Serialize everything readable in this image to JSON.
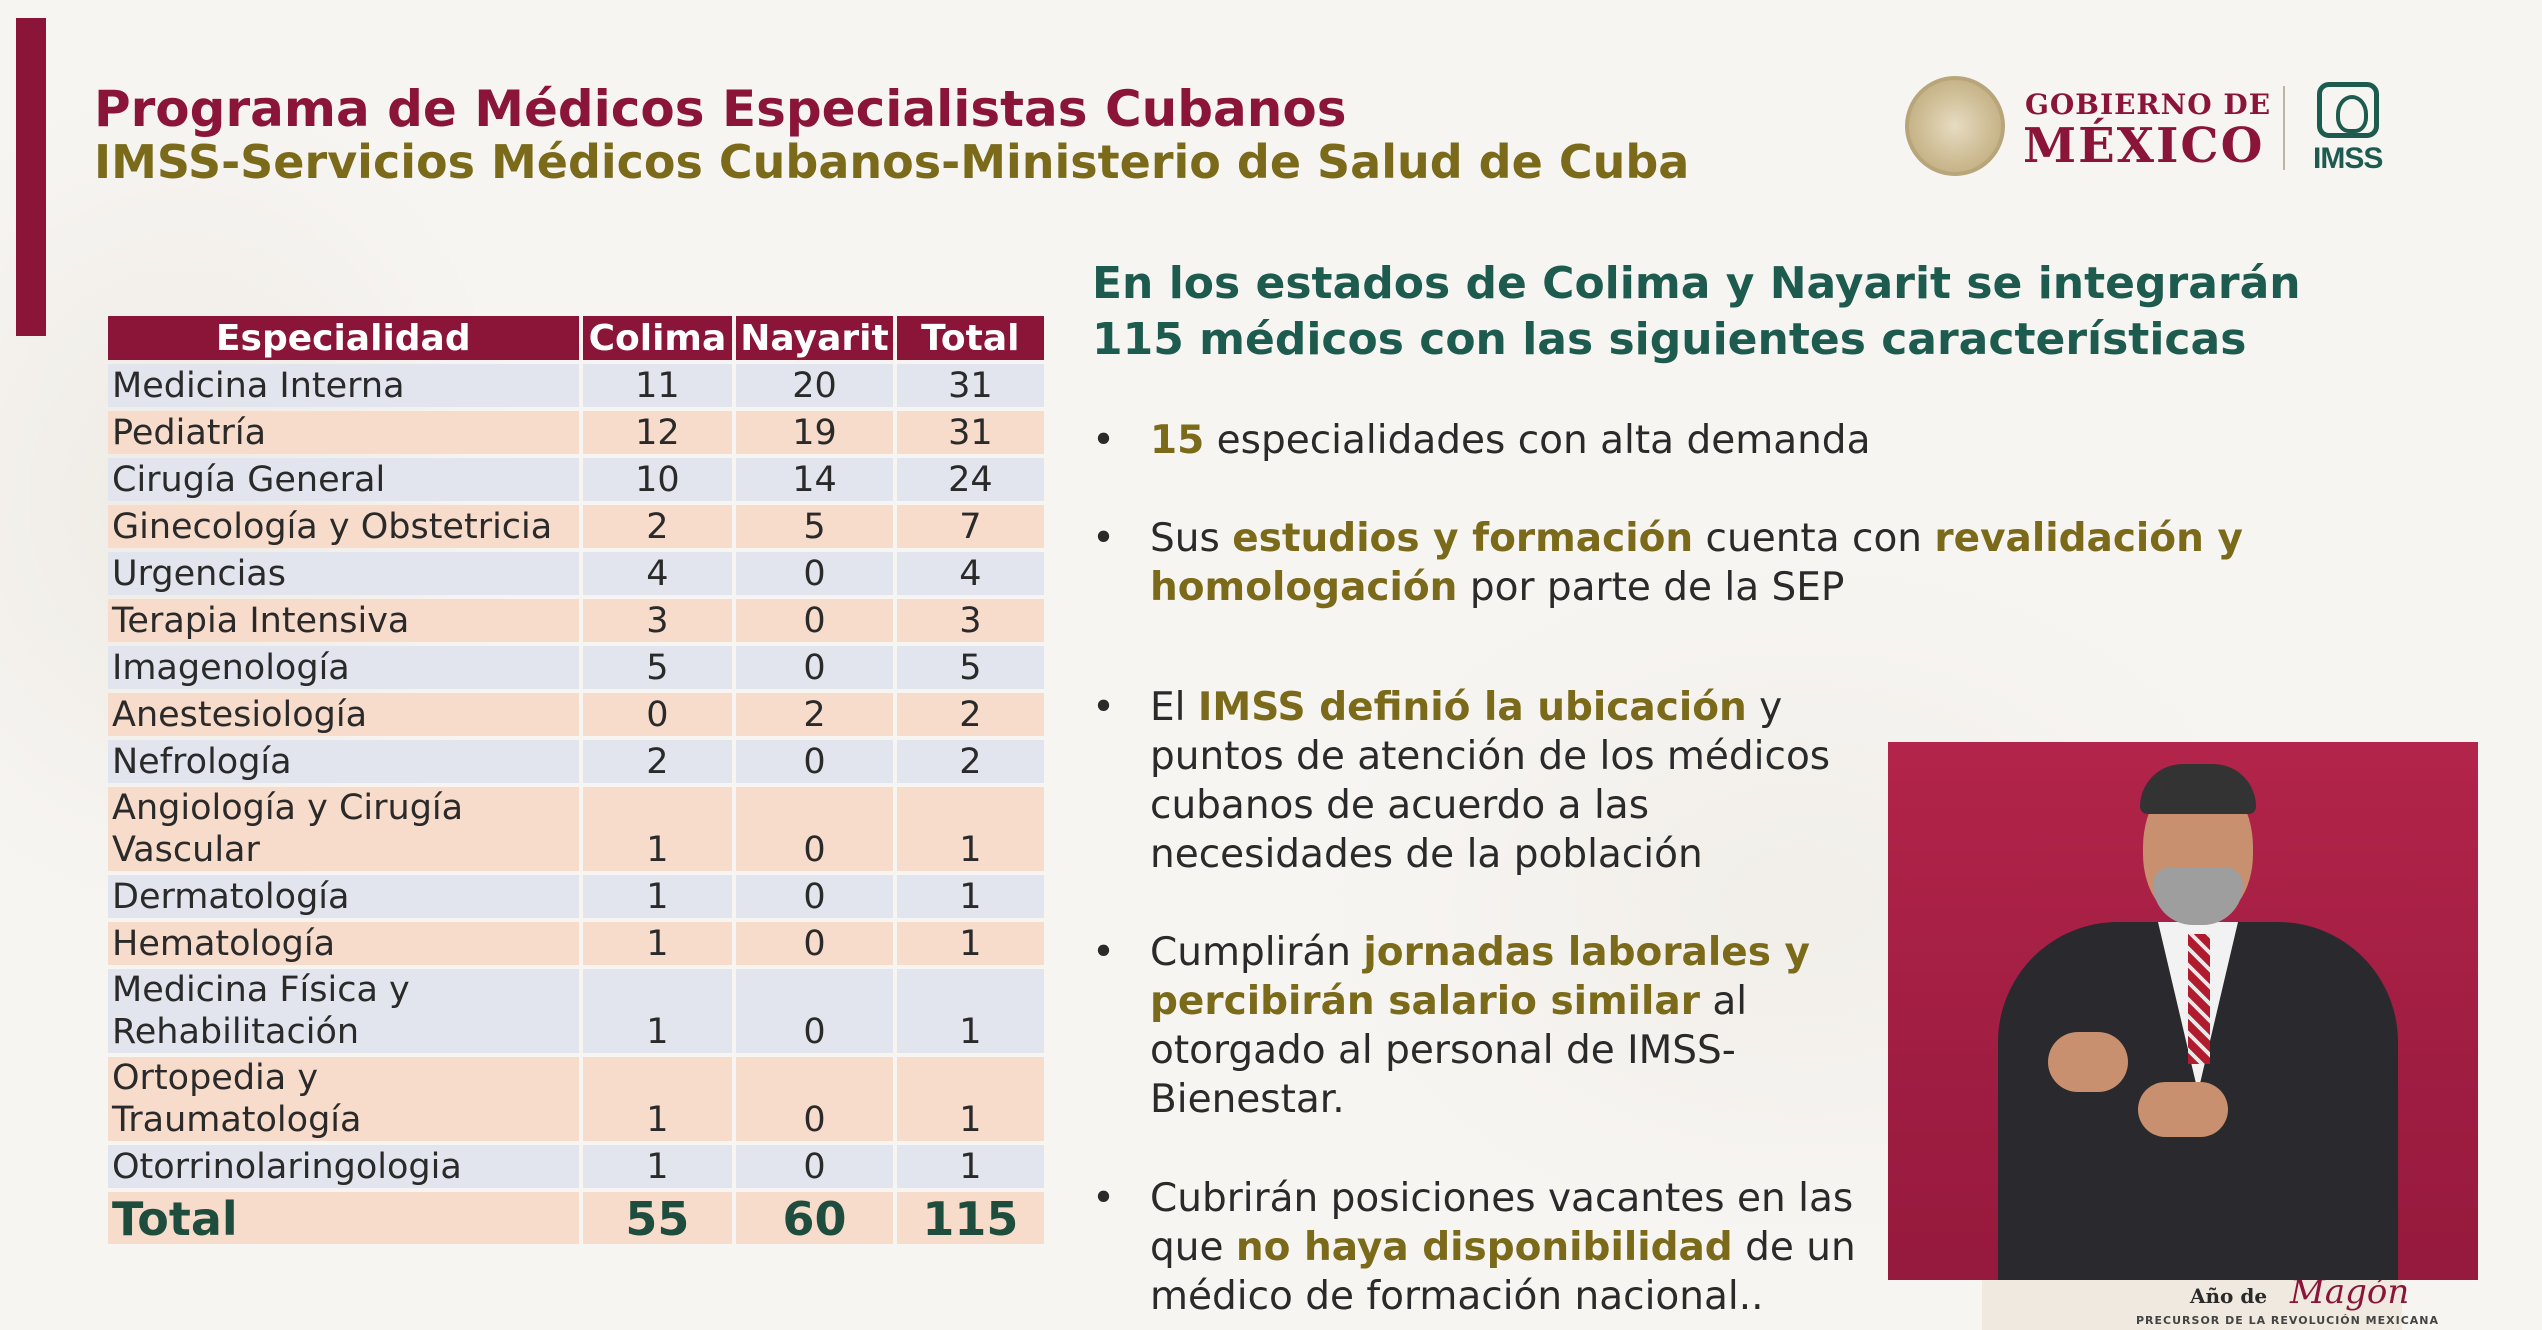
{
  "header": {
    "title": "Programa de Médicos Especialistas Cubanos",
    "subtitle": "IMSS-Servicios Médicos Cubanos-Ministerio de Salud de Cuba"
  },
  "logos": {
    "gobierno_top": "GOBIERNO DE",
    "gobierno_bottom": "MÉXICO",
    "imss": "IMSS"
  },
  "table": {
    "headers": [
      "Especialidad",
      "Colima",
      "Nayarit",
      "Total"
    ],
    "rows": [
      {
        "spec": "Medicina Interna",
        "colima": "11",
        "nayarit": "20",
        "total": "31"
      },
      {
        "spec": "Pediatría",
        "colima": "12",
        "nayarit": "19",
        "total": "31"
      },
      {
        "spec": "Cirugía General",
        "colima": "10",
        "nayarit": "14",
        "total": "24"
      },
      {
        "spec": "Ginecología y Obstetricia",
        "colima": "2",
        "nayarit": "5",
        "total": "7"
      },
      {
        "spec": "Urgencias",
        "colima": "4",
        "nayarit": "0",
        "total": "4"
      },
      {
        "spec": "Terapia Intensiva",
        "colima": "3",
        "nayarit": "0",
        "total": "3"
      },
      {
        "spec": "Imagenología",
        "colima": "5",
        "nayarit": "0",
        "total": "5"
      },
      {
        "spec": "Anestesiología",
        "colima": "0",
        "nayarit": "2",
        "total": "2"
      },
      {
        "spec": "Nefrología",
        "colima": "2",
        "nayarit": "0",
        "total": "2"
      },
      {
        "spec": "Angiología y Cirugía Vascular",
        "colima": "1",
        "nayarit": "0",
        "total": "1"
      },
      {
        "spec": "Dermatología",
        "colima": "1",
        "nayarit": "0",
        "total": "1"
      },
      {
        "spec": "Hematología",
        "colima": "1",
        "nayarit": "0",
        "total": "1"
      },
      {
        "spec": "Medicina Física y Rehabilitación",
        "colima": "1",
        "nayarit": "0",
        "total": "1"
      },
      {
        "spec": "Ortopedia y Traumatología",
        "colima": "1",
        "nayarit": "0",
        "total": "1"
      },
      {
        "spec": "Otorrinolaringologia",
        "colima": "1",
        "nayarit": "0",
        "total": "1"
      }
    ],
    "total": {
      "label": "Total",
      "colima": "55",
      "nayarit": "60",
      "total": "115"
    }
  },
  "right": {
    "heading": "En los estados de Colima y Nayarit se integrarán 115 médicos con las siguientes características",
    "bullet_char": "•",
    "b1": {
      "hl": "15",
      "t": " especialidades con alta demanda"
    },
    "b2": {
      "t1": "Sus ",
      "hl1": "estudios y formación",
      "t2": " cuenta con ",
      "hl2": "revalidación y homologación",
      "t3": " por parte de la SEP"
    },
    "b3": {
      "t1": "El ",
      "hl1": "IMSS definió la ubicación",
      "t2": " y puntos de atención de los médicos cubanos de acuerdo a las necesidades de la población"
    },
    "b4": {
      "t1": "Cumplirán ",
      "hl1": "jornadas laborales y percibirán salario similar",
      "t2": " al otorgado al personal de IMSS-Bienestar."
    },
    "b5": {
      "t1": "Cubrirán posiciones vacantes en las que ",
      "hl1": "no haya disponibilidad",
      "t2": " de un médico de formación nacional.."
    }
  },
  "banner": {
    "small": "Año de",
    "script": "Magón",
    "foot": "PRECURSOR DE LA REVOLUCIÓN MEXICANA"
  }
}
